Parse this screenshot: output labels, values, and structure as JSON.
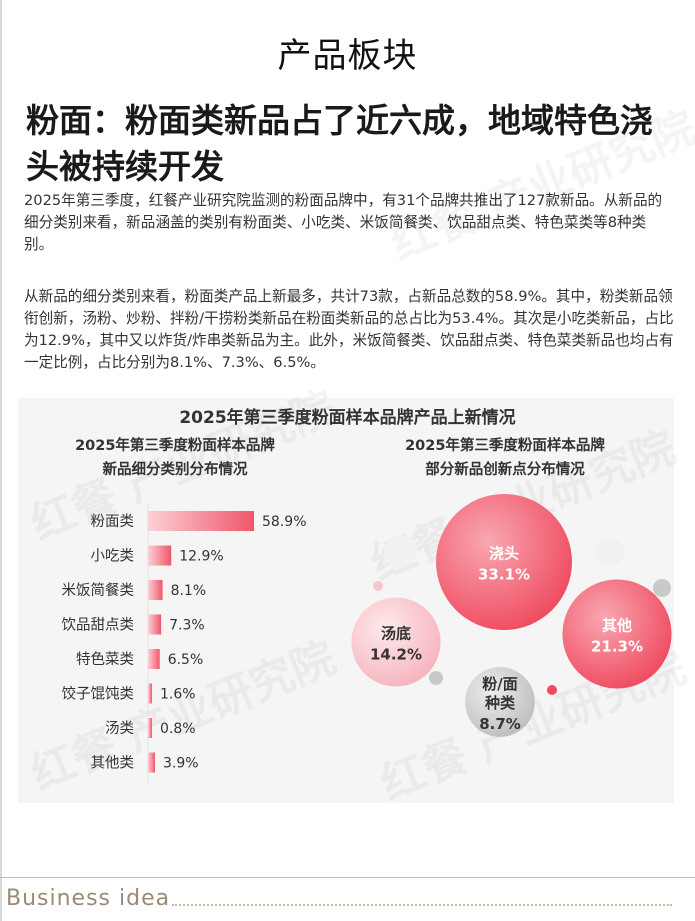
{
  "section_title": "产品板块",
  "headline": "粉面：粉面类新品占了近六成，地域特色浇头被持续开发",
  "paragraphs": [
    "2025年第三季度，红餐产业研究院监测的粉面品牌中，有31个品牌共推出了127款新品。从新品的细分类别来看，新品涵盖的类别有粉面类、小吃类、米饭简餐类、饮品甜点类、特色菜类等8种类别。",
    "从新品的细分类别来看，粉面类产品上新最多，共计73款，占新品总数的58.9%。其中，粉类新品领衔创新，汤粉、炒粉、拌粉/干捞粉类新品在粉面类新品的总占比为53.4%。其次是小吃类新品，占比为12.9%，其中又以炸货/炸串类新品为主。此外，米饭简餐类、饮品甜点类、特色菜类新品也均占有一定比例，占比分别为8.1%、7.3%、6.5%。"
  ],
  "panel_title": "2025年第三季度粉面样本品牌产品上新情况",
  "watermark": "红餐 产业研究院",
  "footer": "Business  idea",
  "colors": {
    "bar": "#f0566a",
    "bubble_main": "#ef4a5e",
    "bubble_light": "#f6b3bc",
    "bubble_gray": "#bdbdbd"
  },
  "chart_data": [
    {
      "type": "bar",
      "orientation": "horizontal",
      "title": "2025年第三季度粉面样本品牌新品细分类别分布情况",
      "title_lines": [
        "2025年第三季度粉面样本品牌",
        "新品细分类别分布情况"
      ],
      "categories": [
        "粉面类",
        "小吃类",
        "米饭简餐类",
        "饮品甜点类",
        "特色菜类",
        "饺子馄饨类",
        "汤类",
        "其他类"
      ],
      "values": [
        58.9,
        12.9,
        8.1,
        7.3,
        6.5,
        1.6,
        0.8,
        3.9
      ],
      "labels": [
        "58.9%",
        "12.9%",
        "8.1%",
        "7.3%",
        "6.5%",
        "1.6%",
        "0.8%",
        "3.9%"
      ],
      "xlim": [
        0,
        100
      ],
      "grid": false
    },
    {
      "type": "bubble",
      "title": "2025年第三季度粉面样本品牌部分新品创新点分布情况",
      "title_lines": [
        "2025年第三季度粉面样本品牌",
        "部分新品创新点分布情况"
      ],
      "categories": [
        "浇头",
        "其他",
        "汤底",
        "粉/面种类"
      ],
      "category_lines": [
        [
          "浇头"
        ],
        [
          "其他"
        ],
        [
          "汤底"
        ],
        [
          "粉/面",
          "种类"
        ]
      ],
      "values": [
        33.1,
        21.3,
        14.2,
        8.7
      ],
      "labels": [
        "33.1%",
        "21.3%",
        "14.2%",
        "8.7%"
      ],
      "color_roles": [
        "main",
        "main",
        "light",
        "gray"
      ]
    }
  ]
}
